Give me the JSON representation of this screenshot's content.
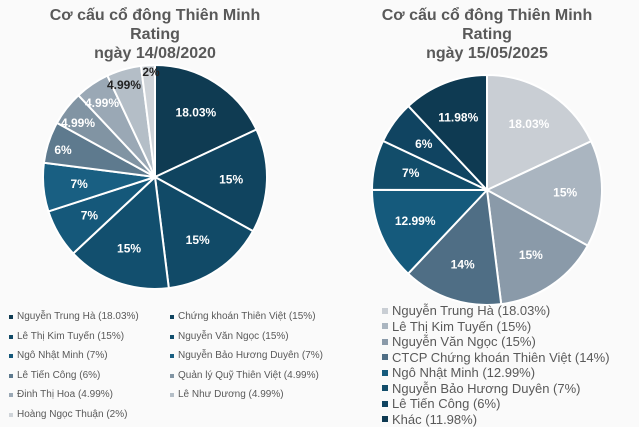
{
  "chart_data": [
    {
      "type": "pie",
      "title_lines": [
        "Cơ cấu cổ đông Thiên Minh",
        "Rating",
        "ngày 14/08/2020"
      ],
      "labels": [
        "Nguyễn Trung Hà",
        "Chứng khoán Thiên Việt",
        "Lê Thị Kim Tuyến",
        "Nguyễn Văn Ngọc",
        "Ngô Nhật Minh",
        "Nguyễn Bảo Hương Duyên",
        "Lê Tiến Công",
        "Quản lý Quỹ Thiên Việt",
        "Đinh Thị Hoa",
        "Lê Như Dương",
        "Hoàng Ngọc Thuận"
      ],
      "values": [
        18.03,
        15,
        15,
        15,
        7,
        7,
        6,
        4.99,
        4.99,
        4.99,
        2
      ],
      "data_labels": [
        "18.03%",
        "15%",
        "15%",
        "15%",
        "7%",
        "7%",
        "6%",
        "4.99%",
        "4.99%",
        "4.99%",
        "2%"
      ],
      "legend": [
        "Nguyễn Trung Hà (18.03%)",
        "Chứng khoán Thiên Việt (15%)",
        "Lê Thị Kim Tuyến (15%)",
        "Nguyễn Văn Ngọc (15%)",
        "Ngô Nhật Minh (7%)",
        "Nguyễn Bảo Hương Duyên (7%)",
        "Lê Tiến Công (6%)",
        "Quản lý Quỹ Thiên Việt (4.99%)",
        "Đinh Thị Hoa (4.99%)",
        "Lê Như Dương (4.99%)",
        "Hoàng Ngọc Thuận (2%)"
      ],
      "colors": [
        "#0f3b52",
        "#10445f",
        "#114a67",
        "#124f6e",
        "#15587a",
        "#195f82",
        "#5e7a8e",
        "#8194a3",
        "#9aa8b5",
        "#b4bec7",
        "#cfd4d9"
      ],
      "legend_placement": "bottom"
    },
    {
      "type": "pie",
      "title_lines": [
        "Cơ cấu cổ đông Thiên Minh",
        "Rating",
        "ngày 15/05/2025"
      ],
      "labels": [
        "Nguyễn Trung Hà",
        "Lê Thị Kim Tuyến",
        "Nguyễn Văn Ngọc",
        "CTCP Chứng khoán Thiên Việt",
        "Ngô Nhật Minh",
        "Nguyễn Bảo Hương Duyên",
        "Lê Tiến Công",
        "Khác"
      ],
      "values": [
        18.03,
        15,
        15,
        14,
        12.99,
        7,
        6,
        11.98
      ],
      "data_labels": [
        "18.03%",
        "15%",
        "15%",
        "14%",
        "12.99%",
        "7%",
        "6%",
        "11.98%"
      ],
      "legend": [
        "Nguyễn Trung Hà (18.03%)",
        "Lê Thị Kim Tuyến (15%)",
        "Nguyễn Văn Ngọc (15%)",
        "CTCP Chứng khoán Thiên Việt (14%)",
        "Ngô Nhật Minh (12.99%)",
        "Nguyễn Bảo Hương Duyên (7%)",
        "Lê Tiến Công (6%)",
        "Khác (11.98%)"
      ],
      "colors": [
        "#c9ced4",
        "#aab5c0",
        "#8a9aa9",
        "#4f6e85",
        "#155a7c",
        "#124d6a",
        "#104461",
        "#0e3a52"
      ],
      "legend_placement": "bottom"
    }
  ]
}
